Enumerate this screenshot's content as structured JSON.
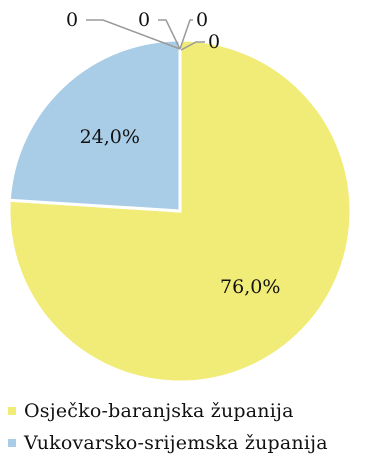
{
  "chart_data": {
    "type": "pie",
    "slices": [
      {
        "label": "Osječko-baranjska županija",
        "value": 76.0,
        "display": "76,0%",
        "color": "#f1ec78"
      },
      {
        "label": "Vukovarsko-srijemska županija",
        "value": 24.0,
        "display": "24,0%",
        "color": "#a9cde6"
      },
      {
        "label": "",
        "value": 0,
        "display": "0",
        "color": "#f1ec78"
      },
      {
        "label": "",
        "value": 0,
        "display": "0",
        "color": "#f1ec78"
      },
      {
        "label": "",
        "value": 0,
        "display": "0",
        "color": "#f1ec78"
      },
      {
        "label": "",
        "value": 0,
        "display": "0",
        "color": "#f1ec78"
      }
    ],
    "legend_position": "bottom-left"
  },
  "legend": [
    {
      "label": "Osječko-baranjska županija",
      "color": "#f1ec78"
    },
    {
      "label": "Vukovarsko-srijemska županija",
      "color": "#a9cde6"
    }
  ]
}
